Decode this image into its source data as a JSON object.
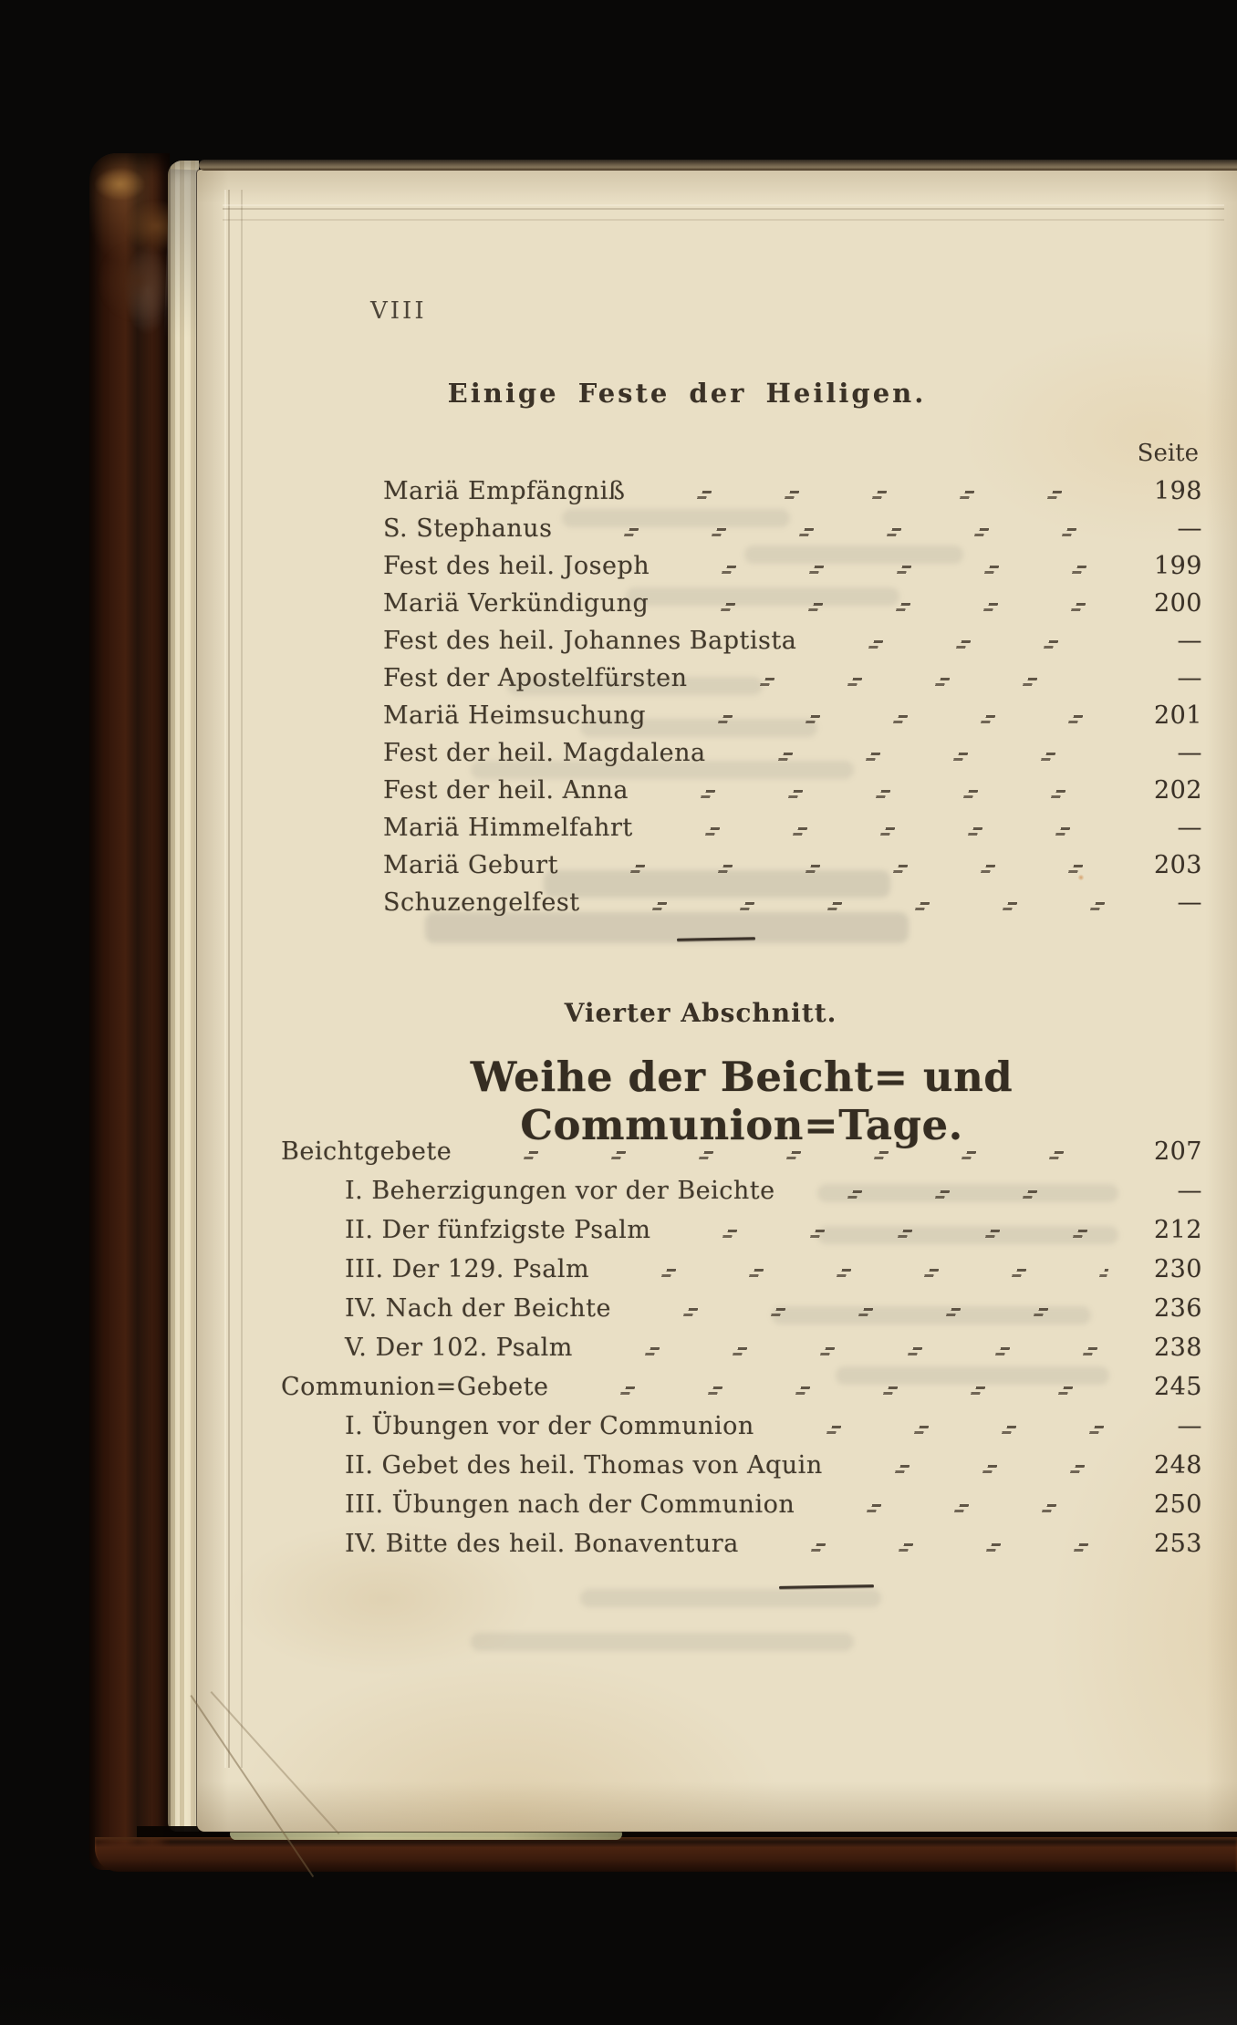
{
  "folio": "VIII",
  "section1": {
    "heading": "Einige Feste der Heiligen.",
    "page_column_label": "Seite",
    "entries": [
      {
        "label": "Mariä Empfängniß",
        "page": "198"
      },
      {
        "label": "S. Stephanus",
        "page": "—"
      },
      {
        "label": "Fest des heil. Joseph",
        "page": "199"
      },
      {
        "label": "Mariä Verkündigung",
        "page": "200"
      },
      {
        "label": "Fest des heil. Johannes Baptista",
        "page": "—"
      },
      {
        "label": "Fest der Apostelfürsten",
        "page": "—"
      },
      {
        "label": "Mariä Heimsuchung",
        "page": "201"
      },
      {
        "label": "Fest der heil. Magdalena",
        "page": "—"
      },
      {
        "label": "Fest der heil. Anna",
        "page": "202"
      },
      {
        "label": "Mariä Himmelfahrt",
        "page": "—"
      },
      {
        "label": "Mariä Geburt",
        "page": "203"
      },
      {
        "label": "Schuzengelfest",
        "page": "—"
      }
    ]
  },
  "section2": {
    "kicker": "Vierter Abschnitt.",
    "title": "Weihe der Beicht= und Communion=Tage.",
    "entries": [
      {
        "label": "Beichtgebete",
        "page": "207"
      },
      {
        "label": "I. Beherzigungen vor der Beichte",
        "page": "—"
      },
      {
        "label": "II. Der fünfzigste Psalm",
        "page": "212"
      },
      {
        "label": "III. Der 129. Psalm",
        "page": "230"
      },
      {
        "label": "IV. Nach der Beichte",
        "page": "236"
      },
      {
        "label": "V. Der 102. Psalm",
        "page": "238"
      },
      {
        "label": "Communion=Gebete",
        "page": "245"
      },
      {
        "label": "I. Übungen vor der Communion",
        "page": "—"
      },
      {
        "label": "II. Gebet des heil. Thomas von Aquin",
        "page": "248"
      },
      {
        "label": "III. Übungen nach der Communion",
        "page": "250"
      },
      {
        "label": "IV. Bitte des heil. Bonaventura",
        "page": "253"
      }
    ]
  },
  "colors": {
    "paper": "#e9dfc5",
    "ink": "#433a2d",
    "leather": "#44200f",
    "background": "#090807"
  }
}
